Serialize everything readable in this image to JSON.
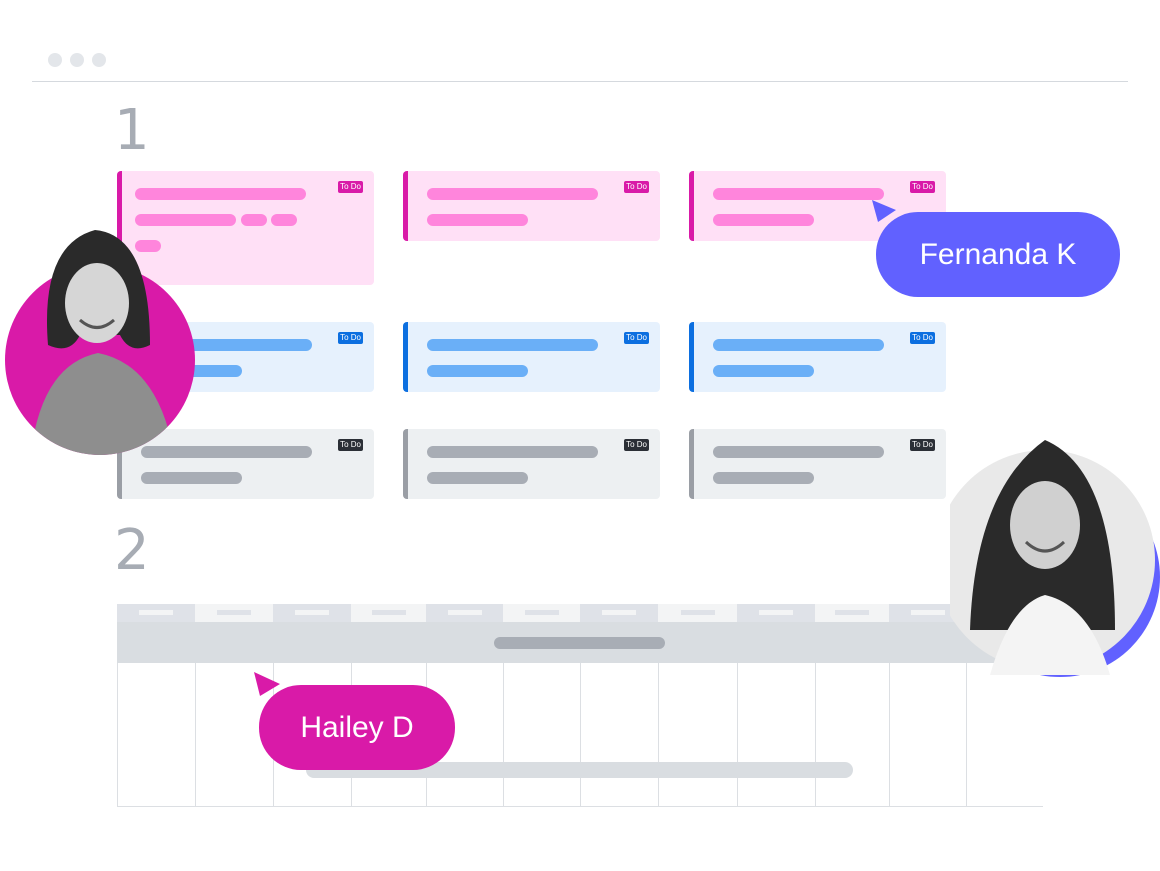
{
  "window": {
    "controls": [
      "dot",
      "dot",
      "dot"
    ]
  },
  "sections": {
    "first": "1",
    "second": "2"
  },
  "board": {
    "badge_label": "To Do",
    "rows": [
      {
        "color": "pink",
        "accent": "#d91aa8",
        "fill": "#ffe0f6",
        "pill": "#ff85dc"
      },
      {
        "color": "blue",
        "accent": "#0c6fe0",
        "fill": "#e6f1fd",
        "pill": "#6aaff7"
      },
      {
        "color": "gray",
        "accent": "#9a9ea5",
        "fill": "#edf0f2",
        "pill": "#a8adb5"
      }
    ],
    "badge_colors": [
      "#d91aa8",
      "#0c6fe0",
      "#2b2f36"
    ]
  },
  "cursors": {
    "fernanda": {
      "name": "Fernanda K",
      "color": "#6161ff"
    },
    "hailey": {
      "name": "Hailey D",
      "color": "#d91aa8"
    }
  },
  "avatars": {
    "left_ring": "#d91aa8",
    "right_ring": "#6161ff"
  }
}
